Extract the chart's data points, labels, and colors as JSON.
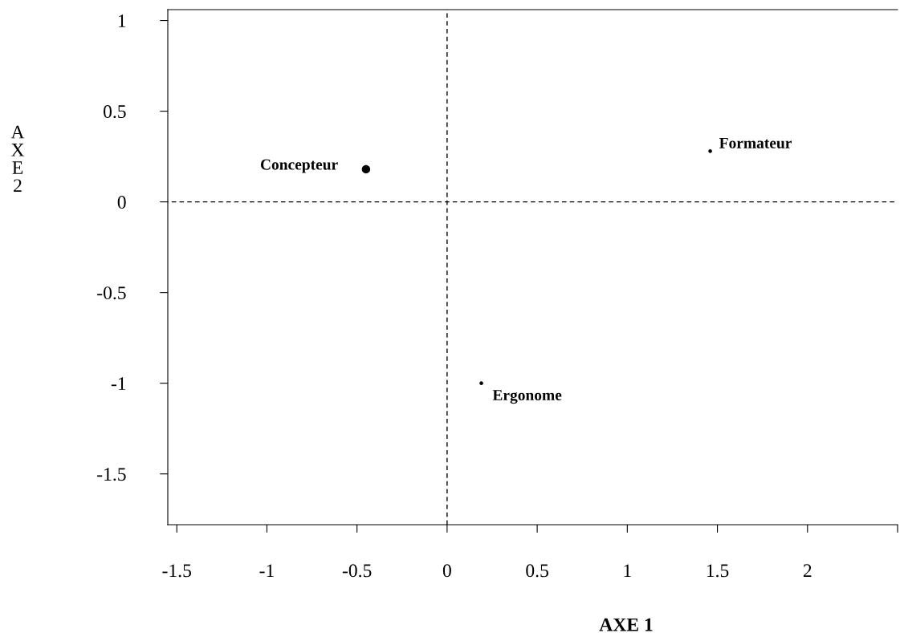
{
  "chart_data": {
    "type": "bubble",
    "xlabel": "AXE 1",
    "ylabel": "AXE 2",
    "x": [
      -0.45,
      1.46,
      0.19
    ],
    "values": [
      0.18,
      0.28,
      -1.0
    ],
    "sizes": [
      1,
      0.2,
      0.2
    ],
    "color": "#000000",
    "annotations": [
      {
        "text": "Concepteur",
        "x": -0.45,
        "y": 0.18
      },
      {
        "text": "Formateur",
        "x": 1.46,
        "y": 0.28
      },
      {
        "text": "Ergonome",
        "x": 0.19,
        "y": -1.0
      }
    ],
    "xlim": [
      -1.55,
      2.5
    ],
    "ylim": [
      -1.78,
      1.06
    ],
    "xticks": [
      -1.5,
      -1,
      -0.5,
      0,
      0.5,
      1,
      1.5,
      2,
      {
        "value": 2.5,
        "label": null
      }
    ],
    "yticks": [
      -1.5,
      -1,
      -0.5,
      0,
      0.5,
      1
    ],
    "ref_lines": [
      {
        "axis": "x",
        "value": 0,
        "line_style": "dashed",
        "color": "#000000"
      },
      {
        "axis": "y",
        "value": 0,
        "line_style": "dashed",
        "color": "#000000"
      }
    ],
    "grid": false,
    "legend": false
  }
}
